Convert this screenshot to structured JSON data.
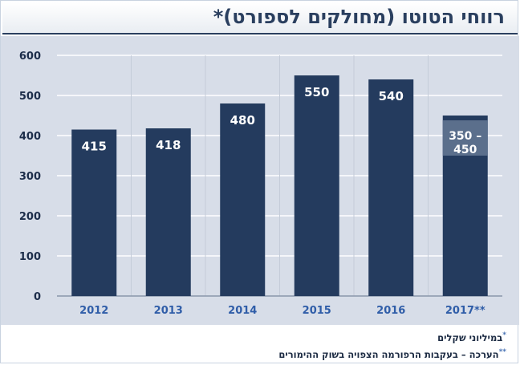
{
  "chart_data": {
    "type": "bar",
    "title": "רווחי הטוטו (מחולקים לספורט)*",
    "categories": [
      "2012",
      "2013",
      "2014",
      "2015",
      "2016",
      "2017**"
    ],
    "values": [
      415,
      418,
      480,
      550,
      540,
      450
    ],
    "labels": [
      "415",
      "418",
      "480",
      "550",
      "540",
      "350 –\n450"
    ],
    "range_bar": {
      "category": "2017**",
      "low": 350,
      "high": 450
    },
    "ylim": [
      0,
      600
    ],
    "yticks": [
      "0",
      "100",
      "200",
      "300",
      "400",
      "500",
      "600"
    ],
    "grid": true,
    "xlabel": "",
    "ylabel": ""
  },
  "footnotes": [
    {
      "mark": "*",
      "text": "במיליוני שקלים"
    },
    {
      "mark": "**",
      "text": "הערכה – בעקבות הרפורמה הצפויה בשוק ההימורים"
    }
  ],
  "colors": {
    "bar": "#243b5e",
    "range": "#5b6f8c",
    "plot_bg": "#d7dde8",
    "tick_text": "#1c2d4a",
    "category_text": "#2f5da8"
  }
}
